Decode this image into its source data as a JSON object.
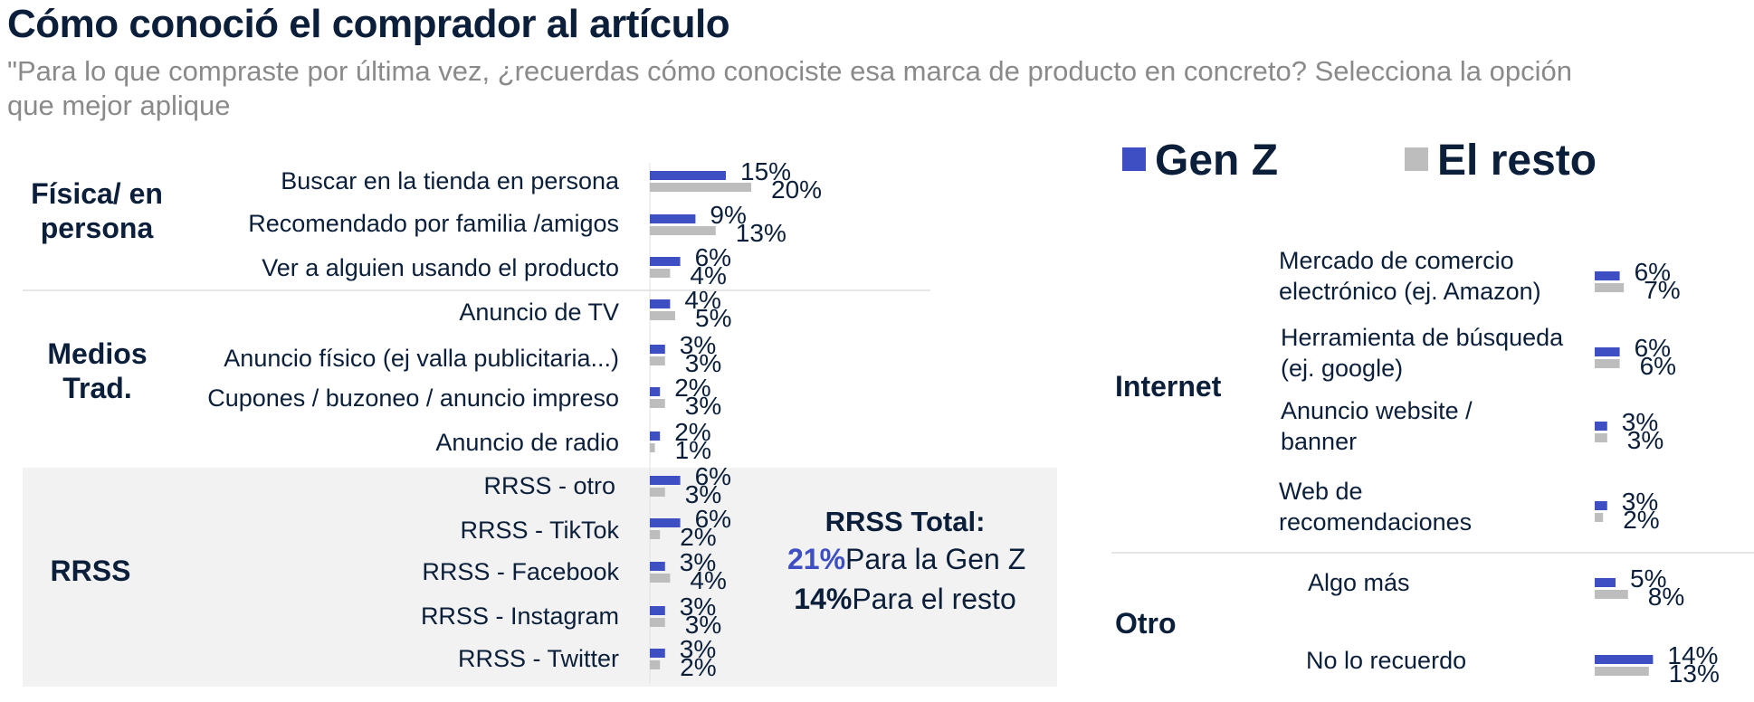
{
  "title": "Cómo conoció el comprador al artículo",
  "subtitle": "\"Para lo que compraste por última vez, ¿recuerdas cómo conociste esa marca de producto en concreto? Selecciona la opción que mejor aplique",
  "legend": {
    "genz": "Gen Z",
    "rest": "El resto"
  },
  "colors": {
    "genz": "#3e4fc4",
    "rest": "#bdbdbd",
    "text": "#0b1f3a",
    "panel": "#f2f2f2"
  },
  "groups": {
    "fisica": "Física/ en persona",
    "medios": "Medios Trad.",
    "rrss": "RRSS",
    "internet": "Internet",
    "otro": "Otro"
  },
  "rrss_total": {
    "heading": "RRSS Total:",
    "genz_value": "21%",
    "genz_text": "Para la Gen Z",
    "rest_value": "14%",
    "rest_text": "Para el resto"
  },
  "chart_data": {
    "type": "bar",
    "orientation": "horizontal",
    "title": "Cómo conoció el comprador al artículo",
    "series": [
      {
        "name": "Gen Z",
        "values": [
          15,
          9,
          6,
          4,
          3,
          2,
          2,
          6,
          6,
          3,
          3,
          3,
          6,
          6,
          3,
          3,
          5,
          14
        ]
      },
      {
        "name": "El resto",
        "values": [
          20,
          13,
          4,
          5,
          3,
          3,
          1,
          3,
          2,
          4,
          3,
          2,
          7,
          6,
          3,
          2,
          8,
          13
        ]
      }
    ],
    "categories": [
      "Buscar en la tienda en persona",
      "Recomendado por familia /amigos",
      "Ver a alguien usando el producto",
      "Anuncio de TV",
      "Anuncio físico (ej valla publicitaria...)",
      "Cupones / buzoneo / anuncio impreso",
      "Anuncio de radio",
      "RRSS - otro",
      "RRSS - TikTok",
      "RRSS - Facebook",
      "RRSS - Instagram",
      "RRSS - Twitter",
      "Mercado de comercio electrónico (ej. Amazon)",
      "Herramienta de búsqueda (ej. google)",
      "Anuncio website / banner",
      "Web de recomendaciones",
      "Algo más",
      "No lo recuerdo"
    ],
    "category_groups": [
      "Física/ en persona",
      "Física/ en persona",
      "Física/ en persona",
      "Medios Trad.",
      "Medios Trad.",
      "Medios Trad.",
      "Medios Trad.",
      "RRSS",
      "RRSS",
      "RRSS",
      "RRSS",
      "RRSS",
      "Internet",
      "Internet",
      "Internet",
      "Internet",
      "Otro",
      "Otro"
    ],
    "unit": "%",
    "legend_position": "top-right",
    "grid": false
  }
}
